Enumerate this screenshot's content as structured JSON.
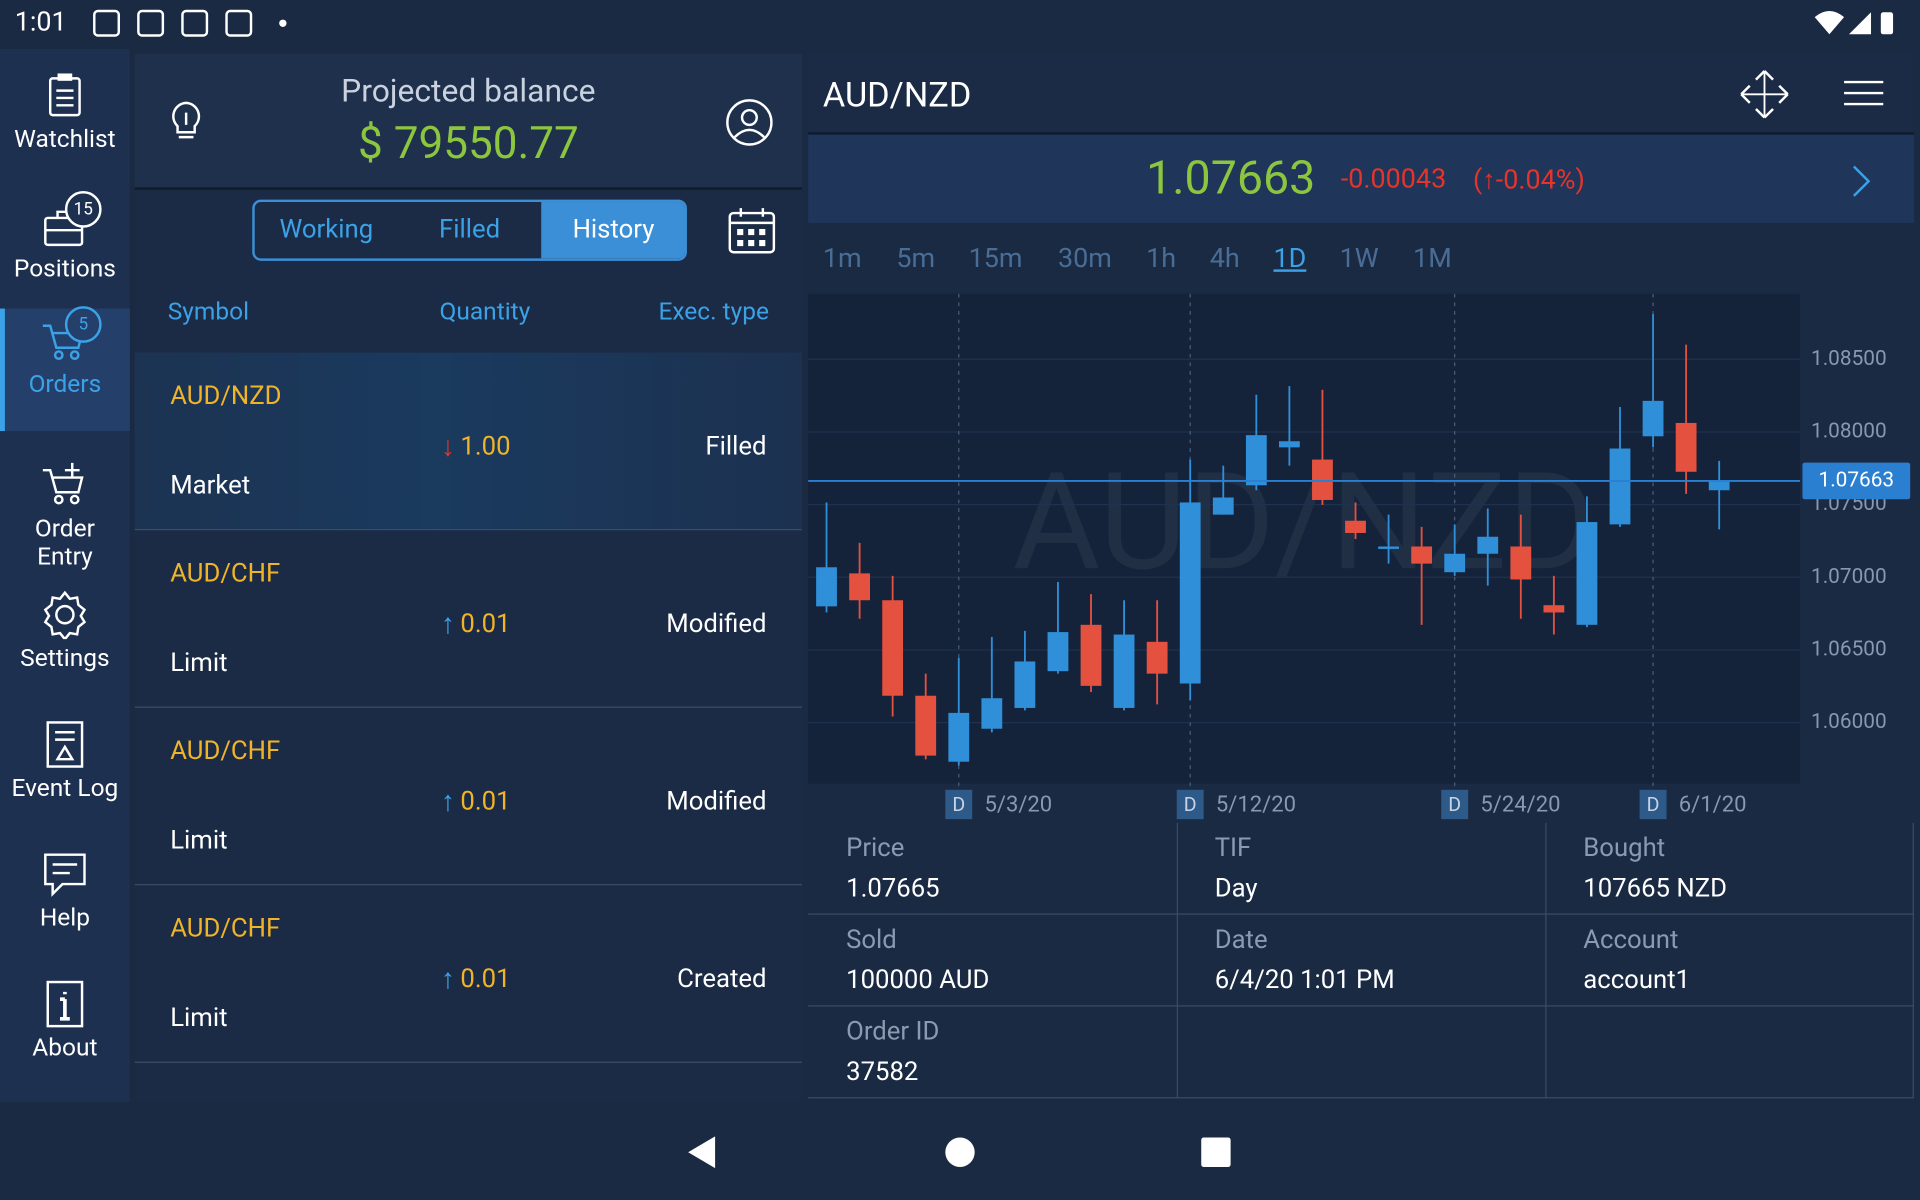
{
  "status_bar": {
    "time": "1:01"
  },
  "sidebar": {
    "items": [
      {
        "label": "Watchlist"
      },
      {
        "label": "Positions",
        "badge": 15
      },
      {
        "label": "Orders",
        "badge": 5
      },
      {
        "label": "Order Entry"
      },
      {
        "label": "Settings"
      },
      {
        "label": "Event Log"
      },
      {
        "label": "Help"
      },
      {
        "label": "About"
      }
    ],
    "active": 2
  },
  "balance": {
    "label": "Projected balance",
    "value": "$ 79550.77"
  },
  "tabs": {
    "items": [
      "Working",
      "Filled",
      "History"
    ],
    "active": 2
  },
  "columns": [
    "Symbol",
    "Quantity",
    "Exec. type"
  ],
  "orders": [
    {
      "symbol": "AUD/NZD",
      "type": "Market",
      "arrow": "↓",
      "quantity": "1.00",
      "exec": "Filled"
    },
    {
      "symbol": "AUD/CHF",
      "type": "Limit",
      "arrow": "↑",
      "quantity": "0.01",
      "exec": "Modified"
    },
    {
      "symbol": "AUD/CHF",
      "type": "Limit",
      "arrow": "↑",
      "quantity": "0.01",
      "exec": "Modified"
    },
    {
      "symbol": "AUD/CHF",
      "type": "Limit",
      "arrow": "↑",
      "quantity": "0.01",
      "exec": "Created"
    }
  ],
  "quote": {
    "change": -0.00043,
    "change_pct": "(↑-0.04%)"
  },
  "timeframes": {
    "items": [
      "1m",
      "5m",
      "15m",
      "30m",
      "1h",
      "4h",
      "1D",
      "1W",
      "1M"
    ],
    "active": 6
  },
  "details": [
    {
      "label": "Price",
      "value": "1.07665"
    },
    {
      "label": "TIF",
      "value": "Day"
    },
    {
      "label": "Bought",
      "value": "107665 NZD"
    },
    {
      "label": "Sold",
      "value": "100000 AUD"
    },
    {
      "label": "Date",
      "value": "6/4/20 1:01 PM"
    },
    {
      "label": "Account",
      "value": "account1"
    },
    {
      "label": "Order ID",
      "value": "37582"
    }
  ],
  "chart_data": {
    "type": "candlestick",
    "title": "AUD/NZD",
    "period_marker": "D",
    "categories": [
      null,
      null,
      null,
      null,
      "5/3/20",
      null,
      null,
      null,
      null,
      null,
      null,
      "5/12/20",
      null,
      null,
      null,
      null,
      null,
      null,
      null,
      "5/24/20",
      null,
      null,
      null,
      null,
      null,
      "6/1/20",
      null,
      null
    ],
    "open": [
      1.068,
      1.07027,
      1.06842,
      1.06185,
      1.05731,
      1.05958,
      1.06101,
      1.06354,
      1.06673,
      1.06101,
      1.06556,
      1.06269,
      1.07431,
      1.07633,
      1.07894,
      1.0781,
      1.07389,
      1.07195,
      1.07212,
      1.07035,
      1.07162,
      1.07212,
      1.06808,
      1.06673,
      1.07364,
      1.0797,
      1.08062,
      1.07599
    ],
    "high": [
      1.07515,
      1.07237,
      1.0701,
      1.06337,
      1.06446,
      1.06589,
      1.06631,
      1.06968,
      1.06884,
      1.06842,
      1.06842,
      1.0781,
      1.07768,
      1.08256,
      1.08315,
      1.0829,
      1.07515,
      1.07431,
      1.07347,
      1.07364,
      1.07473,
      1.07431,
      1.0701,
      1.07557,
      1.08172,
      1.08811,
      1.08601,
      1.07801
    ],
    "low": [
      1.06758,
      1.06715,
      1.06042,
      1.05747,
      1.05705,
      1.05933,
      1.06084,
      1.06337,
      1.0621,
      1.06084,
      1.06126,
      1.06152,
      1.07431,
      1.07599,
      1.07768,
      1.07498,
      1.07263,
      1.07094,
      1.06673,
      1.0701,
      1.06943,
      1.06715,
      1.06606,
      1.06657,
      1.07347,
      1.07894,
      1.07574,
      1.0733
    ],
    "close": [
      1.07069,
      1.06842,
      1.06185,
      1.05773,
      1.06067,
      1.06168,
      1.06421,
      1.06623,
      1.06253,
      1.06606,
      1.06337,
      1.07515,
      1.07549,
      1.07978,
      1.07936,
      1.07532,
      1.07305,
      1.07212,
      1.07094,
      1.07162,
      1.07279,
      1.06985,
      1.06758,
      1.0738,
      1.07886,
      1.08214,
      1.07726,
      1.07667
    ],
    "last_price": 1.07663,
    "up_color": "#2f8fd8",
    "down_color": "#e4513f",
    "ylim": [
      1.0558,
      1.0895
    ],
    "yticks": [
      {
        "value": 1.085,
        "label": "1.08500"
      },
      {
        "value": 1.08,
        "label": "1.08000"
      },
      {
        "value": 1.075,
        "label": "1.07500"
      },
      {
        "value": 1.07,
        "label": "1.07000"
      },
      {
        "value": 1.065,
        "label": "1.06500"
      },
      {
        "value": 1.06,
        "label": "1.06000"
      }
    ],
    "grid": true
  }
}
